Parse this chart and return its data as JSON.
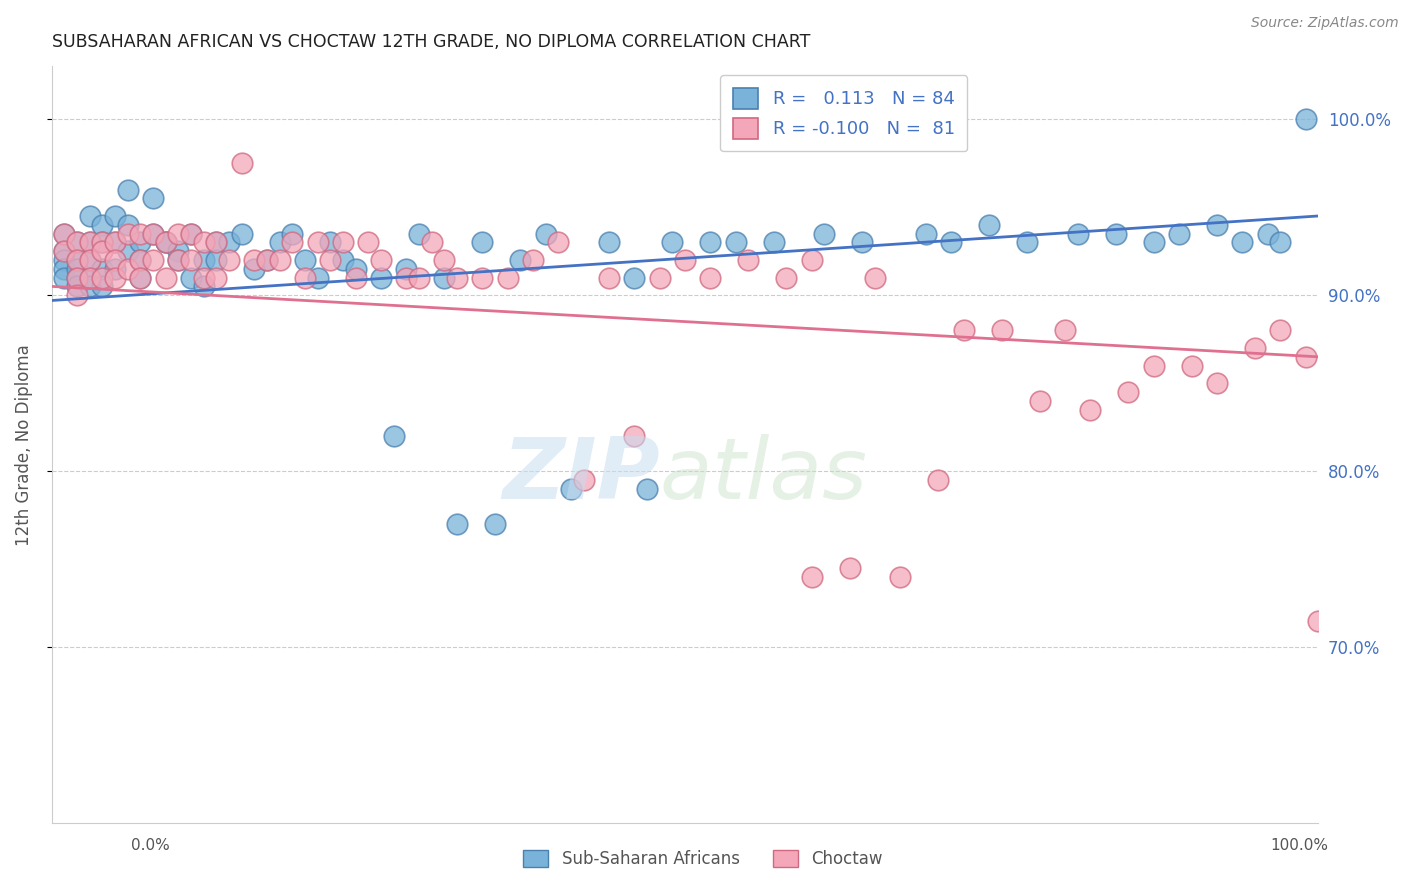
{
  "title": "SUBSAHARAN AFRICAN VS CHOCTAW 12TH GRADE, NO DIPLOMA CORRELATION CHART",
  "source": "Source: ZipAtlas.com",
  "ylabel": "12th Grade, No Diploma",
  "yaxis_labels": [
    "100.0%",
    "90.0%",
    "80.0%",
    "70.0%"
  ],
  "yaxis_values": [
    1.0,
    0.9,
    0.8,
    0.7
  ],
  "xlim": [
    0.0,
    1.0
  ],
  "ylim": [
    0.6,
    1.03
  ],
  "legend_label_blue": "Sub-Saharan Africans",
  "legend_label_pink": "Choctaw",
  "blue_color": "#7ab3d9",
  "pink_color": "#f4a7b9",
  "blue_edge_color": "#4a80b0",
  "pink_edge_color": "#d06880",
  "blue_line_color": "#4472c4",
  "pink_line_color": "#e07090",
  "blue_scatter_x": [
    0.01,
    0.01,
    0.01,
    0.01,
    0.01,
    0.02,
    0.02,
    0.02,
    0.02,
    0.02,
    0.03,
    0.03,
    0.03,
    0.03,
    0.03,
    0.04,
    0.04,
    0.04,
    0.04,
    0.05,
    0.05,
    0.05,
    0.06,
    0.06,
    0.06,
    0.07,
    0.07,
    0.07,
    0.08,
    0.08,
    0.09,
    0.09,
    0.1,
    0.1,
    0.11,
    0.11,
    0.12,
    0.12,
    0.13,
    0.13,
    0.14,
    0.15,
    0.16,
    0.17,
    0.18,
    0.19,
    0.2,
    0.21,
    0.22,
    0.23,
    0.24,
    0.26,
    0.28,
    0.29,
    0.31,
    0.34,
    0.37,
    0.39,
    0.41,
    0.44,
    0.46,
    0.49,
    0.52,
    0.54,
    0.57,
    0.61,
    0.64,
    0.69,
    0.71,
    0.74,
    0.77,
    0.81,
    0.84,
    0.87,
    0.89,
    0.92,
    0.94,
    0.96,
    0.97,
    0.99,
    0.27,
    0.32,
    0.35,
    0.47
  ],
  "blue_scatter_y": [
    0.935,
    0.925,
    0.92,
    0.915,
    0.91,
    0.93,
    0.92,
    0.915,
    0.91,
    0.905,
    0.945,
    0.93,
    0.92,
    0.91,
    0.905,
    0.94,
    0.93,
    0.915,
    0.905,
    0.945,
    0.93,
    0.915,
    0.96,
    0.94,
    0.925,
    0.93,
    0.92,
    0.91,
    0.955,
    0.935,
    0.93,
    0.93,
    0.925,
    0.92,
    0.935,
    0.91,
    0.92,
    0.905,
    0.93,
    0.92,
    0.93,
    0.935,
    0.915,
    0.92,
    0.93,
    0.935,
    0.92,
    0.91,
    0.93,
    0.92,
    0.915,
    0.91,
    0.915,
    0.935,
    0.91,
    0.93,
    0.92,
    0.935,
    0.79,
    0.93,
    0.91,
    0.93,
    0.93,
    0.93,
    0.93,
    0.935,
    0.93,
    0.935,
    0.93,
    0.94,
    0.93,
    0.935,
    0.935,
    0.93,
    0.935,
    0.94,
    0.93,
    0.935,
    0.93,
    1.0,
    0.82,
    0.77,
    0.77,
    0.79
  ],
  "pink_scatter_x": [
    0.01,
    0.01,
    0.02,
    0.02,
    0.02,
    0.02,
    0.03,
    0.03,
    0.03,
    0.04,
    0.04,
    0.04,
    0.05,
    0.05,
    0.05,
    0.06,
    0.06,
    0.07,
    0.07,
    0.07,
    0.08,
    0.08,
    0.09,
    0.09,
    0.1,
    0.1,
    0.11,
    0.11,
    0.12,
    0.12,
    0.13,
    0.13,
    0.14,
    0.15,
    0.16,
    0.17,
    0.18,
    0.19,
    0.2,
    0.21,
    0.22,
    0.23,
    0.24,
    0.25,
    0.26,
    0.28,
    0.29,
    0.3,
    0.31,
    0.32,
    0.34,
    0.36,
    0.38,
    0.4,
    0.42,
    0.44,
    0.46,
    0.48,
    0.5,
    0.52,
    0.55,
    0.58,
    0.6,
    0.65,
    0.7,
    0.72,
    0.75,
    0.78,
    0.8,
    0.82,
    0.85,
    0.87,
    0.9,
    0.92,
    0.95,
    0.97,
    0.99,
    1.0,
    0.6,
    0.63,
    0.67
  ],
  "pink_scatter_y": [
    0.935,
    0.925,
    0.93,
    0.92,
    0.91,
    0.9,
    0.93,
    0.92,
    0.91,
    0.93,
    0.925,
    0.91,
    0.93,
    0.92,
    0.91,
    0.935,
    0.915,
    0.935,
    0.92,
    0.91,
    0.935,
    0.92,
    0.93,
    0.91,
    0.935,
    0.92,
    0.935,
    0.92,
    0.93,
    0.91,
    0.93,
    0.91,
    0.92,
    0.975,
    0.92,
    0.92,
    0.92,
    0.93,
    0.91,
    0.93,
    0.92,
    0.93,
    0.91,
    0.93,
    0.92,
    0.91,
    0.91,
    0.93,
    0.92,
    0.91,
    0.91,
    0.91,
    0.92,
    0.93,
    0.795,
    0.91,
    0.82,
    0.91,
    0.92,
    0.91,
    0.92,
    0.91,
    0.92,
    0.91,
    0.795,
    0.88,
    0.88,
    0.84,
    0.88,
    0.835,
    0.845,
    0.86,
    0.86,
    0.85,
    0.87,
    0.88,
    0.865,
    0.715,
    0.74,
    0.745,
    0.74
  ],
  "blue_trend_x": [
    0.0,
    1.0
  ],
  "blue_trend_y": [
    0.897,
    0.945
  ],
  "pink_trend_x": [
    0.0,
    1.0
  ],
  "pink_trend_y": [
    0.905,
    0.865
  ]
}
